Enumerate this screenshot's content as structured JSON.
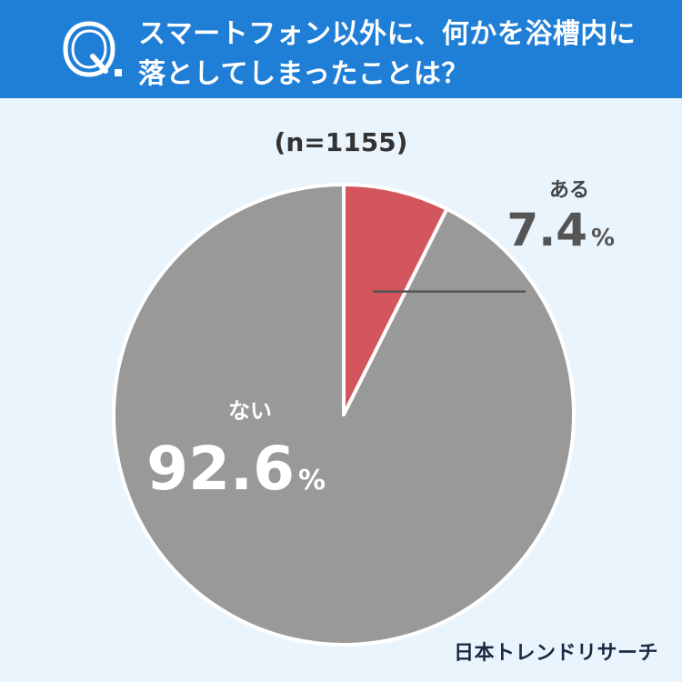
{
  "header": {
    "question_line1": "スマートフォン以外に、何かを浴槽内に",
    "question_line2": "落としてしまったことは？",
    "q_letter": "Q",
    "bg_color": "#1f7ed6"
  },
  "sample_size": "(n=1155)",
  "chart_data": {
    "type": "pie",
    "title": "スマートフォン以外に、何かを浴槽内に落としてしまったことは？",
    "slices": [
      {
        "label": "ある",
        "value": 7.4,
        "display": "7.4",
        "unit": "%",
        "color": "#d4565d"
      },
      {
        "label": "ない",
        "value": 92.6,
        "display": "92.6",
        "unit": "%",
        "color": "#999999"
      }
    ],
    "start": "12 o'clock",
    "direction": "clockwise"
  },
  "brand": "日本トレンドリサーチ"
}
